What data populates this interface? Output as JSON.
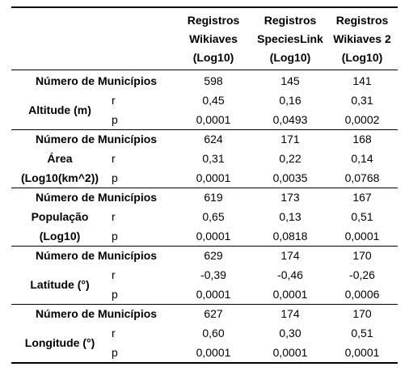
{
  "header": {
    "col1": "Registros\nWikiaves\n(Log10)",
    "col2": "Registros\nSpeciesLink\n(Log10)",
    "col3": "Registros\nWikiaves 2\n(Log10)"
  },
  "count_label": "Número de Municípios",
  "groups": [
    {
      "variable": "Altitude (m)",
      "variable_line2": "",
      "n": [
        "598",
        "145",
        "141"
      ],
      "r_label": "r",
      "r": [
        "0,45",
        "0,16",
        "0,31"
      ],
      "p_label": "p",
      "p": [
        "0,0001",
        "0,0493",
        "0,0002"
      ]
    },
    {
      "variable": "Área",
      "variable_line2": "(Log10(km^2))",
      "n": [
        "624",
        "171",
        "168"
      ],
      "r_label": "r",
      "r": [
        "0,31",
        "0,22",
        "0,14"
      ],
      "p_label": "p",
      "p": [
        "0,0001",
        "0,0035",
        "0,0768"
      ]
    },
    {
      "variable": "População",
      "variable_line2": "(Log10)",
      "n": [
        "619",
        "173",
        "167"
      ],
      "r_label": "r",
      "r": [
        "0,65",
        "0,13",
        "0,51"
      ],
      "p_label": "p",
      "p": [
        "0,0001",
        "0,0818",
        "0,0001"
      ]
    },
    {
      "variable": "Latitude (°)",
      "variable_line2": "",
      "n": [
        "629",
        "174",
        "170"
      ],
      "r_label": "r",
      "r": [
        "-0,39",
        "-0,46",
        "-0,26"
      ],
      "p_label": "p",
      "p": [
        "0,0001",
        "0,0001",
        "0,0006"
      ]
    },
    {
      "variable": "Longitude (°)",
      "variable_line2": "",
      "n": [
        "627",
        "174",
        "170"
      ],
      "r_label": "r",
      "r": [
        "0,60",
        "0,30",
        "0,51"
      ],
      "p_label": "p",
      "p": [
        "0,0001",
        "0,0001",
        "0,0001"
      ]
    }
  ]
}
